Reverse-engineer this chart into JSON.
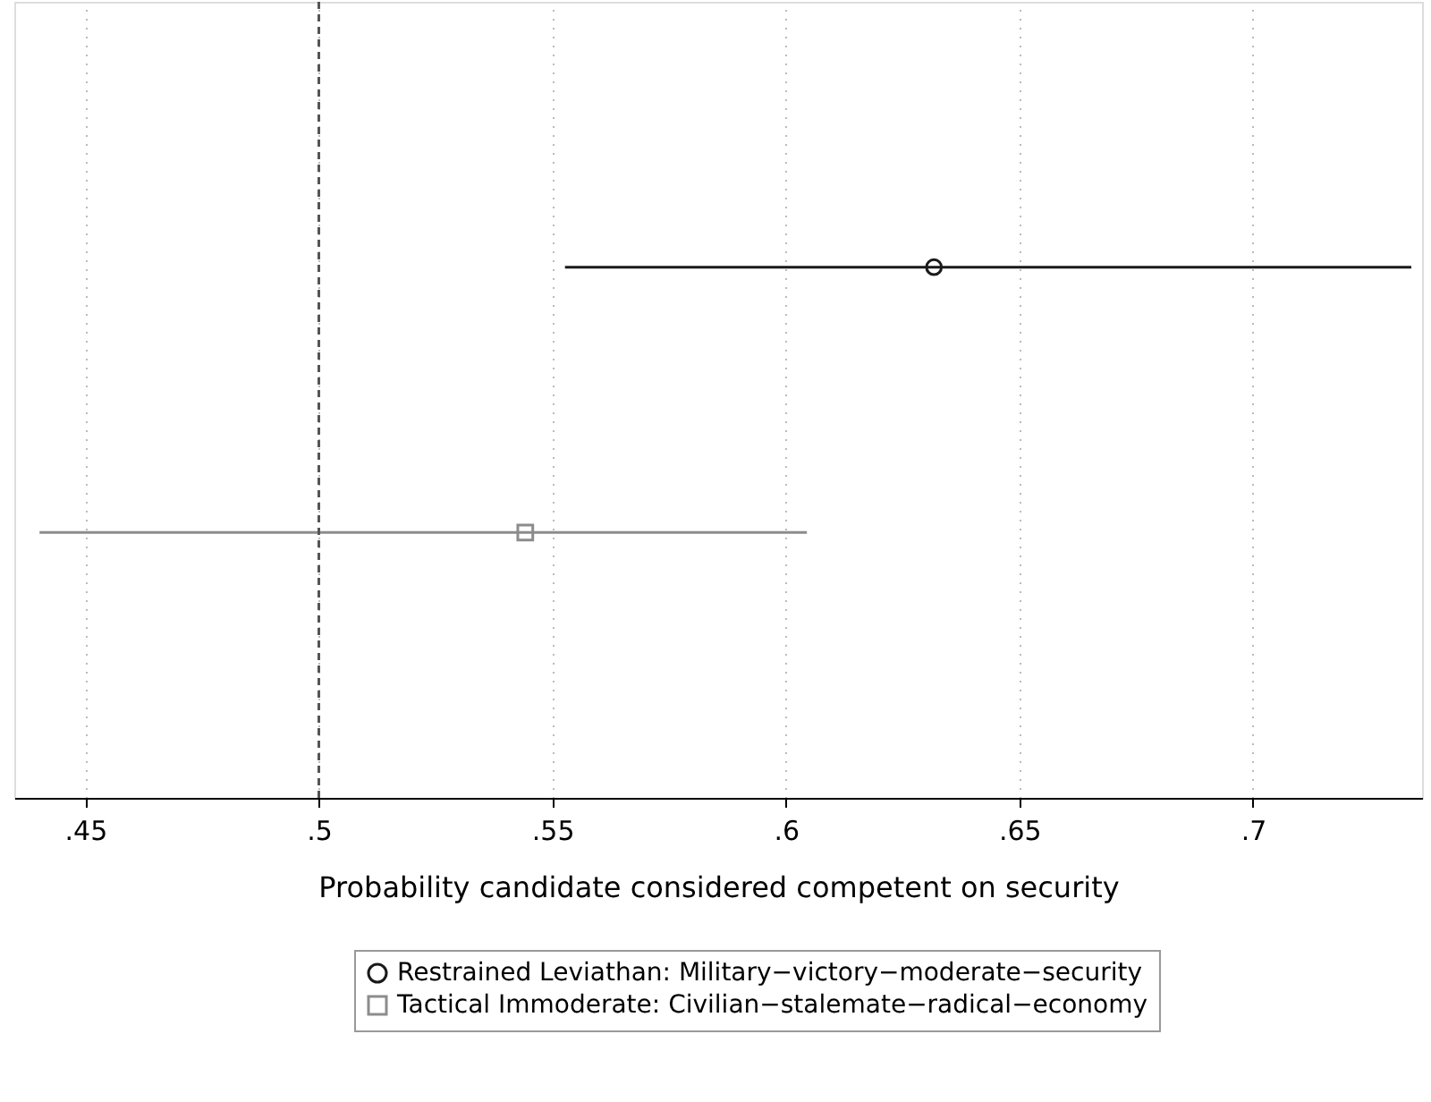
{
  "chart_data": {
    "type": "scatter",
    "orientation": "horizontal",
    "xlabel": "Probability candidate considered competent on security",
    "categories": [
      null,
      null
    ],
    "series": [
      {
        "name": "Restrained Leviathan: Military−victory−moderate−security",
        "color": "#1a1a1a",
        "marker": "circle",
        "values": [
          0.6317,
          null
        ],
        "errors": [
          [
            0.5527,
            0.7339
          ],
          null
        ]
      },
      {
        "name": "Tactical Immoderate: Civilian−stalemate−radical−economy",
        "color": "#8c8c8c",
        "marker": "square",
        "values": [
          null,
          0.5442
        ],
        "errors": [
          null,
          [
            0.4402,
            0.6045
          ]
        ]
      }
    ],
    "xlim": [
      0.4348,
      0.7362
    ],
    "xticks": [
      {
        "value": 0.45,
        "label": ".45"
      },
      {
        "value": 0.5,
        "label": ".5"
      },
      {
        "value": 0.55,
        "label": ".55"
      },
      {
        "value": 0.6,
        "label": ".6"
      },
      {
        "value": 0.65,
        "label": ".65"
      },
      {
        "value": 0.7,
        "label": ".7"
      }
    ],
    "ref_lines": [
      {
        "axis": "x",
        "value": 0.5,
        "line_style": "dashed",
        "color": "#555555"
      }
    ],
    "grid": "x",
    "legend": "bottom"
  }
}
